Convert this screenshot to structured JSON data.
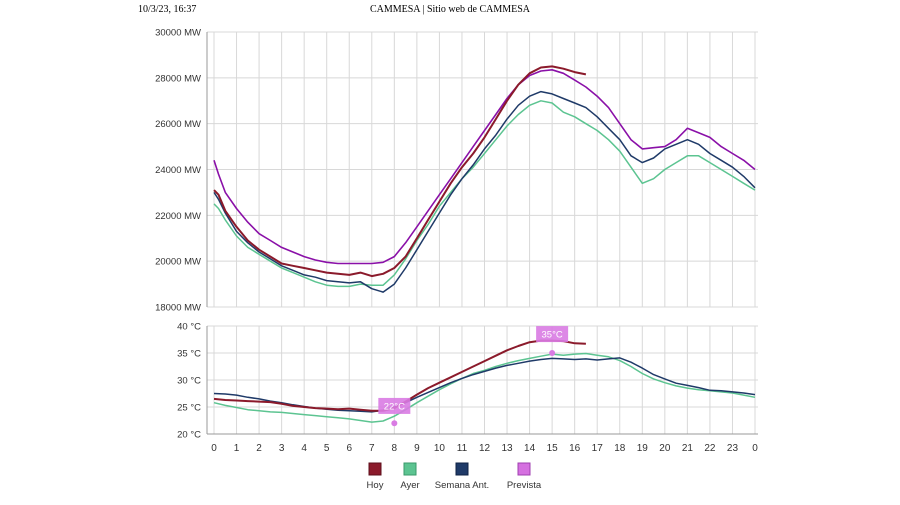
{
  "header": {
    "datetime": "10/3/23, 16:37",
    "title": "CAMMESA | Sitio web de CAMMESA"
  },
  "chart_data": [
    {
      "type": "line",
      "name": "demand",
      "x": [
        0,
        0.2,
        0.5,
        1,
        1.5,
        2,
        2.5,
        3,
        3.5,
        4,
        4.5,
        5,
        5.5,
        6,
        6.5,
        7,
        7.5,
        8,
        8.5,
        9,
        9.5,
        10,
        10.5,
        11,
        11.5,
        12,
        12.5,
        13,
        13.5,
        14,
        14.5,
        15,
        15.5,
        16,
        16.5,
        17,
        17.5,
        18,
        18.5,
        19,
        19.5,
        20,
        20.5,
        21,
        21.5,
        22,
        22.5,
        23,
        23.5,
        24
      ],
      "x_ticks": [
        "0",
        "1",
        "2",
        "3",
        "4",
        "5",
        "6",
        "7",
        "8",
        "9",
        "10",
        "11",
        "12",
        "13",
        "14",
        "15",
        "16",
        "17",
        "18",
        "19",
        "20",
        "21",
        "22",
        "23",
        "0"
      ],
      "y_ticks": [
        "18000 MW",
        "20000 MW",
        "22000 MW",
        "24000 MW",
        "26000 MW",
        "28000 MW",
        "30000 MW"
      ],
      "ylim": [
        18000,
        30000
      ],
      "xlim": [
        0,
        24
      ],
      "grid": true,
      "series": [
        {
          "name": "Hoy",
          "color": "#8b1a2b",
          "values": [
            23100,
            22900,
            22200,
            21500,
            20900,
            20500,
            20200,
            19900,
            19800,
            19700,
            19600,
            19500,
            19450,
            19400,
            19500,
            19350,
            19450,
            19700,
            20200,
            21000,
            21800,
            22600,
            23400,
            24100,
            24700,
            25400,
            26200,
            27000,
            27700,
            28200,
            28450,
            28500,
            28400,
            28250,
            28150,
            null,
            null,
            null,
            null,
            null,
            null,
            null,
            null,
            null,
            null,
            null,
            null,
            null,
            null,
            null
          ]
        },
        {
          "name": "Ayer",
          "color": "#5cc491",
          "values": [
            22500,
            22300,
            21800,
            21100,
            20600,
            20300,
            20000,
            19700,
            19500,
            19300,
            19100,
            18950,
            18900,
            18900,
            19000,
            18950,
            18950,
            19400,
            20100,
            20900,
            21600,
            22400,
            23000,
            23600,
            24100,
            24700,
            25300,
            25900,
            26400,
            26800,
            27000,
            26900,
            26500,
            26300,
            26000,
            25700,
            25300,
            24800,
            24100,
            23400,
            23600,
            24000,
            24300,
            24600,
            24600,
            24300,
            24000,
            23700,
            23400,
            23100
          ]
        },
        {
          "name": "Semana Ant.",
          "color": "#1f3a68",
          "values": [
            23000,
            22700,
            22100,
            21300,
            20800,
            20400,
            20100,
            19800,
            19600,
            19400,
            19300,
            19150,
            19100,
            19050,
            19100,
            18800,
            18650,
            19000,
            19700,
            20500,
            21300,
            22100,
            22900,
            23600,
            24200,
            24900,
            25500,
            26200,
            26800,
            27200,
            27400,
            27300,
            27100,
            26900,
            26700,
            26300,
            25800,
            25300,
            24600,
            24300,
            24500,
            24900,
            25100,
            25300,
            25100,
            24700,
            24400,
            24100,
            23700,
            23200
          ]
        },
        {
          "name": "Prevista",
          "color": "#8a10a8",
          "values": [
            24400,
            23800,
            23000,
            22300,
            21700,
            21200,
            20900,
            20600,
            20400,
            20200,
            20050,
            19950,
            19900,
            19900,
            19900,
            19900,
            19950,
            20200,
            20800,
            21500,
            22200,
            22900,
            23600,
            24300,
            25000,
            25700,
            26400,
            27100,
            27700,
            28100,
            28300,
            28350,
            28200,
            27900,
            27600,
            27200,
            26700,
            26000,
            25300,
            24900,
            24950,
            25000,
            25300,
            25800,
            25600,
            25400,
            25000,
            24700,
            24400,
            24000
          ]
        }
      ]
    },
    {
      "type": "line",
      "name": "temperature",
      "x": [
        0,
        0.5,
        1,
        1.5,
        2,
        2.5,
        3,
        3.5,
        4,
        4.5,
        5,
        5.5,
        6,
        6.5,
        7,
        7.5,
        8,
        8.5,
        9,
        9.5,
        10,
        10.5,
        11,
        11.5,
        12,
        12.5,
        13,
        13.5,
        14,
        14.5,
        15,
        15.5,
        16,
        16.5,
        17,
        17.5,
        18,
        18.5,
        19,
        19.5,
        20,
        20.5,
        21,
        21.5,
        22,
        22.5,
        23,
        23.5,
        24
      ],
      "x_ticks": [
        "0",
        "1",
        "2",
        "3",
        "4",
        "5",
        "6",
        "7",
        "8",
        "9",
        "10",
        "11",
        "12",
        "13",
        "14",
        "15",
        "16",
        "17",
        "18",
        "19",
        "20",
        "21",
        "22",
        "23",
        "0"
      ],
      "y_ticks": [
        "20 °C",
        "25 °C",
        "30 °C",
        "35 °C",
        "40 °C"
      ],
      "ylim": [
        20,
        40
      ],
      "xlim": [
        0,
        24
      ],
      "grid": true,
      "series": [
        {
          "name": "Hoy",
          "color": "#8b1a2b",
          "values": [
            26.5,
            26.3,
            26.2,
            26.1,
            26.0,
            25.9,
            25.6,
            25.2,
            25.0,
            24.8,
            24.7,
            24.6,
            24.7,
            24.5,
            24.3,
            24.3,
            24.8,
            26.0,
            27.3,
            28.5,
            29.5,
            30.5,
            31.5,
            32.5,
            33.5,
            34.5,
            35.5,
            36.3,
            37.0,
            37.3,
            37.3,
            37.2,
            36.8,
            36.7,
            null,
            null,
            null,
            null,
            null,
            null,
            null,
            null,
            null,
            null,
            null,
            null,
            null,
            null,
            null
          ]
        },
        {
          "name": "Ayer",
          "color": "#5cc491",
          "values": [
            25.8,
            25.3,
            24.9,
            24.5,
            24.3,
            24.1,
            24.0,
            23.8,
            23.6,
            23.4,
            23.2,
            23.0,
            22.8,
            22.5,
            22.2,
            22.4,
            23.3,
            24.5,
            25.8,
            27.0,
            28.2,
            29.3,
            30.3,
            31.2,
            31.8,
            32.5,
            33.1,
            33.6,
            34.0,
            34.4,
            34.8,
            34.6,
            34.8,
            34.9,
            34.6,
            34.3,
            33.6,
            32.5,
            31.2,
            30.2,
            29.5,
            28.9,
            28.5,
            28.2,
            28.0,
            27.8,
            27.6,
            27.2,
            26.8
          ]
        },
        {
          "name": "Semana Ant.",
          "color": "#1f3a68",
          "values": [
            27.5,
            27.4,
            27.2,
            26.8,
            26.5,
            26.1,
            25.8,
            25.4,
            25.1,
            24.8,
            24.6,
            24.4,
            24.3,
            24.2,
            24.1,
            24.4,
            25.0,
            25.8,
            26.8,
            27.7,
            28.6,
            29.5,
            30.3,
            31.0,
            31.6,
            32.2,
            32.7,
            33.1,
            33.5,
            33.8,
            34.0,
            33.9,
            33.8,
            33.9,
            33.7,
            33.9,
            34.1,
            33.3,
            32.2,
            31.0,
            30.2,
            29.4,
            29.0,
            28.6,
            28.1,
            28.0,
            27.8,
            27.6,
            27.3
          ]
        }
      ],
      "prevista_points": [
        {
          "x": 8,
          "y": 22,
          "label": "22°C"
        },
        {
          "x": 15,
          "y": 35,
          "label": "35°C"
        }
      ]
    }
  ],
  "legend": [
    {
      "label": "Hoy",
      "color": "#8b1a2b",
      "border": "#5c0f1b"
    },
    {
      "label": "Ayer",
      "color": "#5cc491",
      "border": "#3a9a6a"
    },
    {
      "label": "Semana Ant.",
      "color": "#1f3a68",
      "border": "#0f2244"
    },
    {
      "label": "Prevista",
      "color": "#d570e0",
      "border": "#a040b0"
    }
  ]
}
